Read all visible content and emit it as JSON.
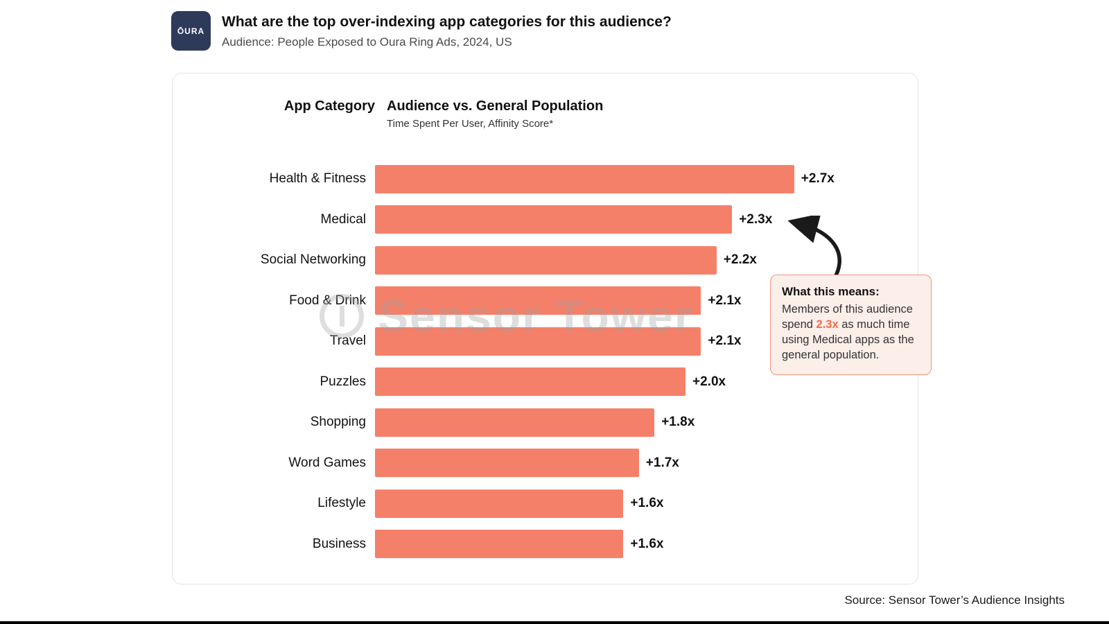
{
  "header": {
    "logo_text": "ŌURA",
    "title": "What are the top over-indexing app categories for this audience?",
    "subtitle": "Audience: People Exposed to Oura Ring Ads, 2024, US"
  },
  "chart_head": {
    "col1": "App Category",
    "col2_title": "Audience vs. General Population",
    "col2_sub": "Time Spent Per User, Affinity Score*"
  },
  "chart_data": {
    "type": "bar",
    "orientation": "horizontal",
    "title": "Audience vs. General Population",
    "subtitle": "Time Spent Per User, Affinity Score*",
    "xlabel": "",
    "ylabel": "App Category",
    "xlim": [
      0,
      3.0
    ],
    "grid": false,
    "bar_color": "#F5806A",
    "categories": [
      "Health & Fitness",
      "Medical",
      "Social Networking",
      "Food & Drink",
      "Travel",
      "Puzzles",
      "Shopping",
      "Word Games",
      "Lifestyle",
      "Business"
    ],
    "values": [
      2.7,
      2.3,
      2.2,
      2.1,
      2.1,
      2.0,
      1.8,
      1.7,
      1.6,
      1.6
    ],
    "labels": [
      "+2.7x",
      "+2.3x",
      "+2.2x",
      "+2.1x",
      "+2.1x",
      "+2.0x",
      "+1.8x",
      "+1.7x",
      "+1.6x",
      "+1.6x"
    ]
  },
  "callout": {
    "title": "What this means:",
    "body_pre": "Members of this audience spend ",
    "highlight": "2.3x",
    "body_post": " as much time using Medical apps as the general population."
  },
  "watermark": "Sensor Tower",
  "footer": {
    "source": "Source: Sensor Tower’s Audience Insights"
  }
}
